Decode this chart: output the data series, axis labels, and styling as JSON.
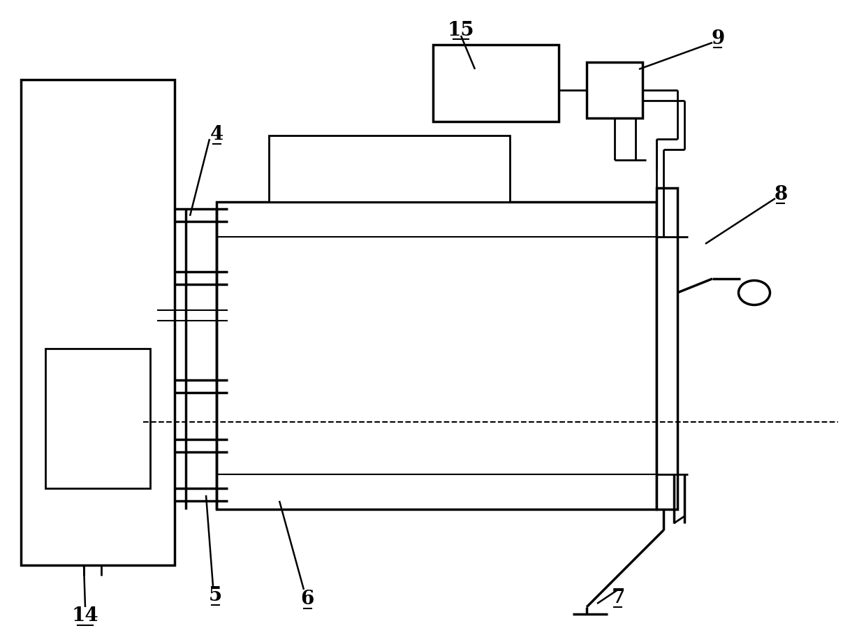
{
  "bg_color": "#ffffff",
  "line_color": "#000000",
  "lw": 2.0,
  "lw_thick": 2.5
}
